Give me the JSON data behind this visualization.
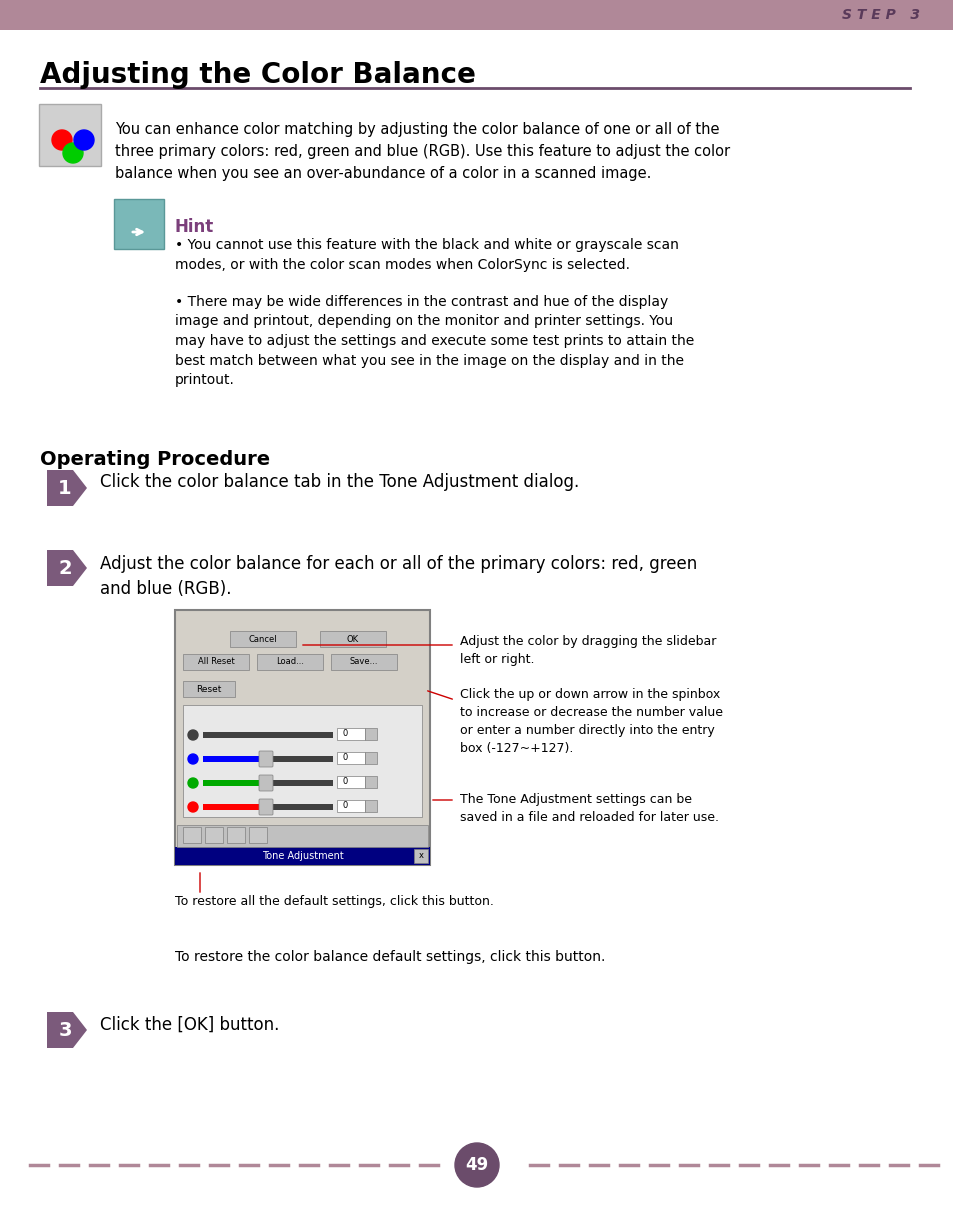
{
  "bg_color": "#ffffff",
  "header_color": "#b08898",
  "header_text": "S T E P   3",
  "header_text_color": "#5a3a5a",
  "title": "Adjusting the Color Balance",
  "title_color": "#000000",
  "underline_color": "#6b4c6b",
  "intro_text": "You can enhance color matching by adjusting the color balance of one or all of the\nthree primary colors: red, green and blue (RGB). Use this feature to adjust the color\nbalance when you see an over-abundance of a color in a scanned image.",
  "hint_title": "Hint",
  "hint_title_color": "#7b3f7b",
  "hint_bullet1": "You cannot use this feature with the black and white or grayscale scan\nmodes, or with the color scan modes when ColorSync is selected.",
  "hint_bullet2": "There may be wide differences in the contrast and hue of the display\nimage and printout, depending on the monitor and printer settings. You\nmay have to adjust the settings and execute some test prints to attain the\nbest match between what you see in the image on the display and in the\nprintout.",
  "op_proc_title": "Operating Procedure",
  "step1_text": "Click the color balance tab in the Tone Adjustment dialog.",
  "step2_text": "Adjust the color balance for each or all of the primary colors: red, green\nand blue (RGB).",
  "step3_text": "Click the [OK] button.",
  "annot1": "Adjust the color by dragging the slidebar\nleft or right.",
  "annot2": "Click the up or down arrow in the spinbox\nto increase or decrease the number value\nor enter a number directly into the entry\nbox (-127~+127).",
  "annot3": "The Tone Adjustment settings can be\nsaved in a file and reloaded for later use.",
  "annot4": "To restore all the default settings, click this button.",
  "annot5": "To restore the color balance default settings, click this button.",
  "page_number": "49",
  "page_num_color": "#ffffff",
  "page_num_bg": "#6b4c6b",
  "dash_color": "#b08898",
  "step_icon_color": "#7b5a7b",
  "step_number_color": "#ffffff"
}
